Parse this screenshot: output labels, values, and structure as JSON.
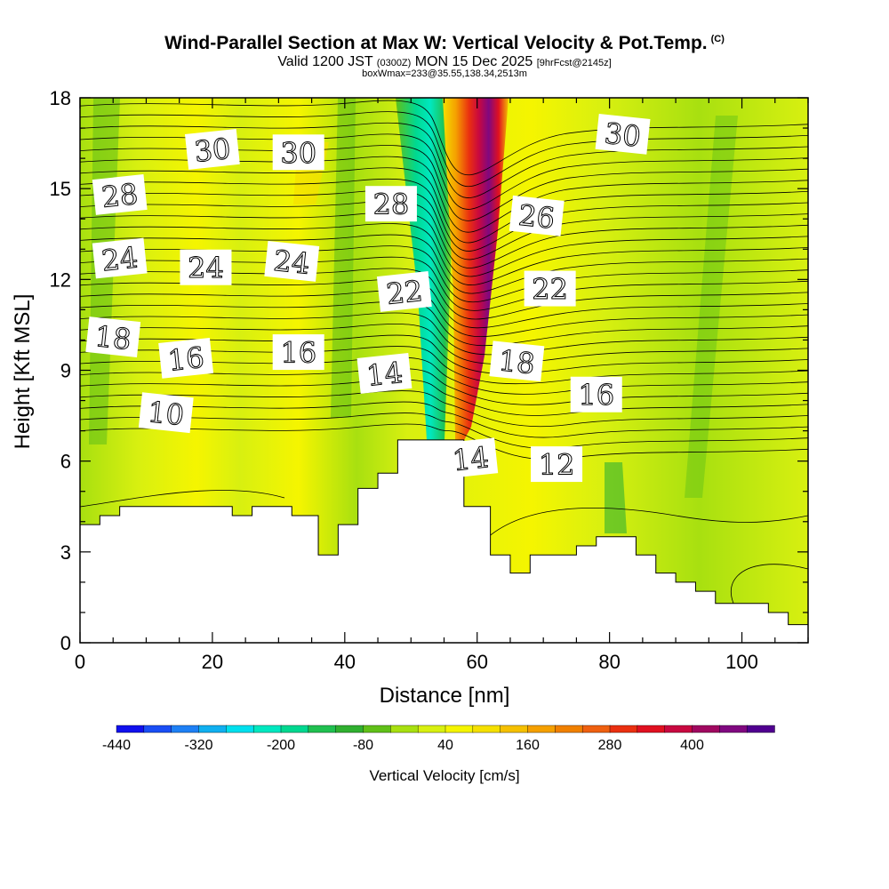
{
  "title": {
    "main": "Wind-Parallel Section at Max W: Vertical Velocity & Pot.Temp.",
    "mark": "(C)",
    "valid_prefix": "Valid 1200 JST",
    "valid_z": "(0300Z)",
    "valid_date": "MON 15 Dec 2025",
    "forecast": "[9hrFcst@2145z]",
    "box": "boxWmax=233@35.55,138.34,2513m"
  },
  "colorbar": {
    "label": "Vertical Velocity [cm/s]",
    "ticks": [
      "-440",
      "-320",
      "-200",
      "-80",
      "40",
      "160",
      "280",
      "400"
    ],
    "colors": [
      "#1010ee",
      "#1a4ef5",
      "#1e80f5",
      "#10b0f0",
      "#00e0ee",
      "#00e8c0",
      "#00d890",
      "#20c050",
      "#30b030",
      "#60c018",
      "#a8e010",
      "#d8f010",
      "#f5f500",
      "#f5e000",
      "#f5c000",
      "#f5a000",
      "#f08000",
      "#ef6010",
      "#ea3010",
      "#e01020",
      "#c80840",
      "#a00860",
      "#800880",
      "#500090"
    ]
  },
  "chart_data": {
    "type": "heatmap",
    "title": "Wind-Parallel Section at Max W: Vertical Velocity & Pot.Temp.",
    "xlabel": "Distance [nm]",
    "ylabel": "Height [Kft MSL]",
    "xlim": [
      0,
      110
    ],
    "ylim": [
      0,
      18
    ],
    "x_ticks": [
      "0",
      "20",
      "40",
      "60",
      "80",
      "100"
    ],
    "y_ticks": [
      "0",
      "3",
      "6",
      "9",
      "12",
      "15",
      "18"
    ],
    "terrain": [
      [
        0,
        3.9
      ],
      [
        3,
        4.2
      ],
      [
        6,
        4.5
      ],
      [
        23,
        4.2
      ],
      [
        26,
        4.5
      ],
      [
        32,
        4.2
      ],
      [
        36,
        2.9
      ],
      [
        39,
        3.9
      ],
      [
        42,
        5.1
      ],
      [
        45,
        5.6
      ],
      [
        48,
        6.7
      ],
      [
        55,
        6.7
      ],
      [
        58,
        4.5
      ],
      [
        62,
        2.9
      ],
      [
        65,
        2.3
      ],
      [
        68,
        2.9
      ],
      [
        75,
        3.2
      ],
      [
        78,
        3.5
      ],
      [
        84,
        2.9
      ],
      [
        87,
        2.3
      ],
      [
        90,
        2.0
      ],
      [
        93,
        1.7
      ],
      [
        96,
        1.3
      ],
      [
        100,
        1.3
      ],
      [
        104,
        1.0
      ],
      [
        107,
        0.6
      ],
      [
        110,
        0.3
      ]
    ],
    "vertical_velocity_max": {
      "x": 58,
      "value": 440
    },
    "vertical_velocity_min": {
      "x": 52,
      "value": -200
    },
    "potential_temp_labels": [
      {
        "text": "30",
        "x": 20,
        "y": 16.3
      },
      {
        "text": "30",
        "x": 33,
        "y": 16.2
      },
      {
        "text": "30",
        "x": 82,
        "y": 16.8
      },
      {
        "text": "28",
        "x": 6,
        "y": 14.8
      },
      {
        "text": "28",
        "x": 47,
        "y": 14.5
      },
      {
        "text": "26",
        "x": 69,
        "y": 14.1
      },
      {
        "text": "24",
        "x": 6,
        "y": 12.7
      },
      {
        "text": "24",
        "x": 19,
        "y": 12.4
      },
      {
        "text": "24",
        "x": 32,
        "y": 12.6
      },
      {
        "text": "22",
        "x": 49,
        "y": 11.6
      },
      {
        "text": "22",
        "x": 71,
        "y": 11.7
      },
      {
        "text": "18",
        "x": 5,
        "y": 10.1
      },
      {
        "text": "16",
        "x": 16,
        "y": 9.4
      },
      {
        "text": "16",
        "x": 33,
        "y": 9.6
      },
      {
        "text": "18",
        "x": 66,
        "y": 9.3
      },
      {
        "text": "14",
        "x": 46,
        "y": 8.9
      },
      {
        "text": "16",
        "x": 78,
        "y": 8.2
      },
      {
        "text": "10",
        "x": 13,
        "y": 7.6
      },
      {
        "text": "14",
        "x": 59,
        "y": 6.1
      },
      {
        "text": "12",
        "x": 72,
        "y": 5.9
      }
    ]
  }
}
